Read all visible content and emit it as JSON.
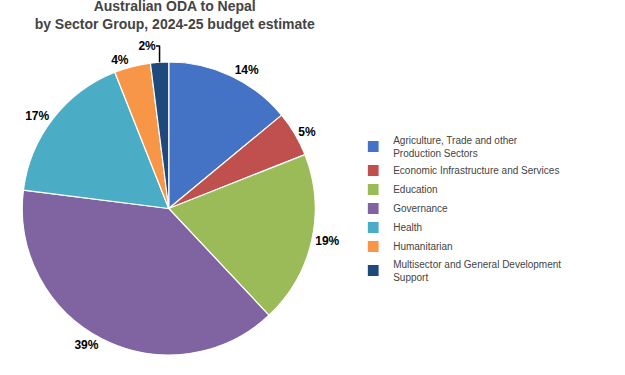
{
  "chart_data": {
    "type": "pie",
    "title": "Australian ODA to Nepal\nby Sector Group, 2024-25 budget estimate",
    "categories": [
      "Agriculture, Trade and other\nProduction Sectors",
      "Economic Infrastructure and Services",
      "Education",
      "Governance",
      "Health",
      "Humanitarian",
      "Multisector and General Development\nSupport"
    ],
    "values": [
      14,
      5,
      19,
      39,
      17,
      4,
      2
    ],
    "value_labels": [
      "14%",
      "5%",
      "19%",
      "39%",
      "17%",
      "4%",
      "2%"
    ],
    "colors": [
      "#4472C4",
      "#C0504D",
      "#9BBB59",
      "#8064A2",
      "#4BACC6",
      "#F79646",
      "#1F497D"
    ],
    "data_labels": true,
    "legend": "right"
  }
}
